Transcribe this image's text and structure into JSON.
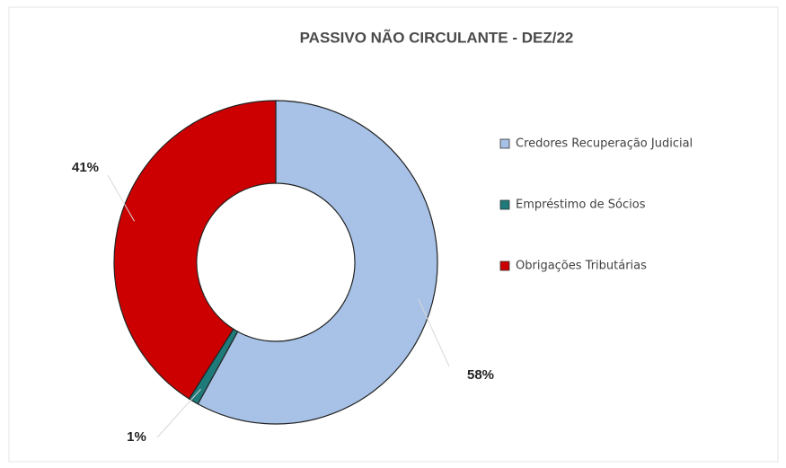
{
  "chart_data": {
    "type": "donut",
    "title": "PASSIVO NÃO CIRCULANTE  - DEZ/22",
    "categories": [
      "Credores Recuperação Judicial",
      "Empréstimo de Sócios",
      "Obrigações Tributárias"
    ],
    "values": [
      58,
      1,
      41
    ],
    "value_labels": [
      "58%",
      "1%",
      "41%"
    ],
    "colors": [
      "#a7c2e6",
      "#1f7a7a",
      "#cc0000"
    ],
    "legend": "right"
  }
}
